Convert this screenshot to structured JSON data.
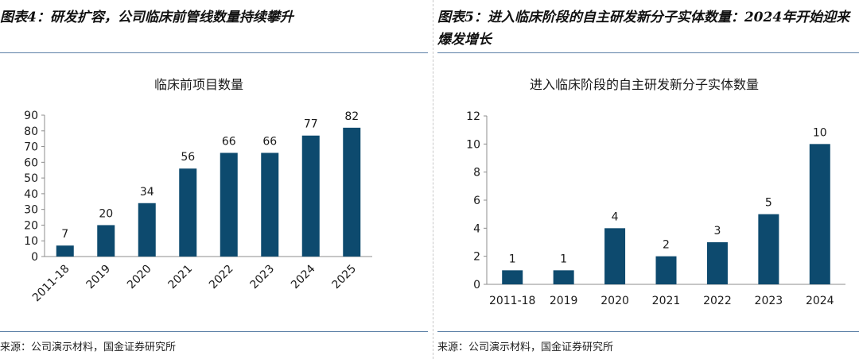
{
  "panels": {
    "left": {
      "heading": "图表4：研发扩容，公司临床前管线数量持续攀升",
      "source": "来源：公司演示材料，国金证券研究所"
    },
    "right": {
      "heading": "图表5：进入临床阶段的自主研发新分子实体数量：2024年开始迎来爆发增长",
      "source": "来源：公司演示材料，国金证券研究所"
    }
  },
  "colors": {
    "bar": "#0d4a6e",
    "axis": "#8c8c8c",
    "rule": "#5b7fa6"
  },
  "chart_data": [
    {
      "type": "bar",
      "title": "临床前项目数量",
      "categories": [
        "2011-18",
        "2019",
        "2020",
        "2021",
        "2022",
        "2023",
        "2024",
        "2025"
      ],
      "values": [
        7,
        20,
        34,
        56,
        66,
        66,
        77,
        82
      ],
      "ylim": [
        0,
        90
      ],
      "yticks": [
        0,
        10,
        20,
        30,
        40,
        50,
        60,
        70,
        80,
        90
      ],
      "xlabel": "",
      "ylabel": "",
      "rotated_xticks": true
    },
    {
      "type": "bar",
      "title": "进入临床阶段的自主研发新分子实体数量",
      "categories": [
        "2011-18",
        "2019",
        "2020",
        "2021",
        "2022",
        "2023",
        "2024"
      ],
      "values": [
        1,
        1,
        4,
        2,
        3,
        5,
        10
      ],
      "ylim": [
        0,
        12
      ],
      "yticks": [
        0,
        2,
        4,
        6,
        8,
        10,
        12
      ],
      "xlabel": "",
      "ylabel": "",
      "rotated_xticks": false
    }
  ]
}
